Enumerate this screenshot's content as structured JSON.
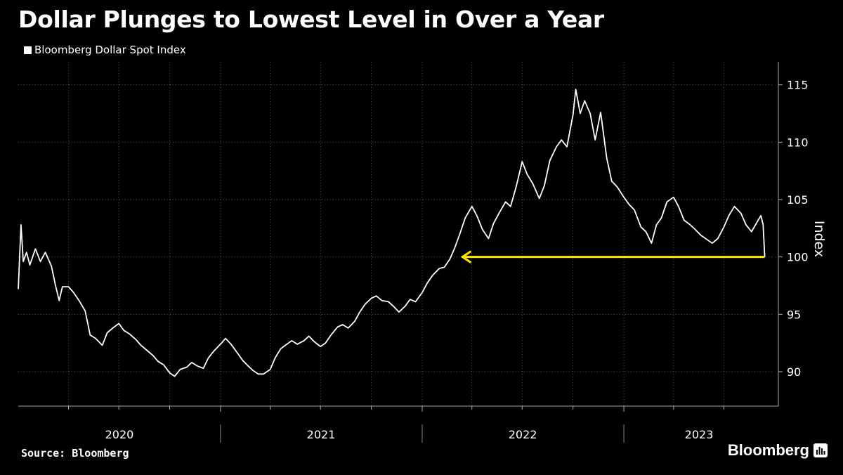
{
  "chart_data": {
    "type": "line",
    "title": "Dollar Plunges to Lowest Level in Over a Year",
    "series": [
      {
        "name": "Bloomberg Dollar Spot Index",
        "color": "#ffffff",
        "points": [
          [
            "2020-01-01",
            97.2
          ],
          [
            "2020-01-06",
            102.8
          ],
          [
            "2020-01-10",
            99.6
          ],
          [
            "2020-01-16",
            100.4
          ],
          [
            "2020-01-22",
            99.3
          ],
          [
            "2020-02-01",
            100.7
          ],
          [
            "2020-02-10",
            99.6
          ],
          [
            "2020-02-19",
            100.4
          ],
          [
            "2020-03-01",
            99.2
          ],
          [
            "2020-03-08",
            97.6
          ],
          [
            "2020-03-15",
            96.2
          ],
          [
            "2020-03-21",
            97.4
          ],
          [
            "2020-04-01",
            97.4
          ],
          [
            "2020-04-10",
            96.9
          ],
          [
            "2020-04-20",
            96.2
          ],
          [
            "2020-05-01",
            95.3
          ],
          [
            "2020-05-10",
            93.2
          ],
          [
            "2020-05-20",
            92.9
          ],
          [
            "2020-06-01",
            92.3
          ],
          [
            "2020-06-10",
            93.4
          ],
          [
            "2020-06-20",
            93.8
          ],
          [
            "2020-07-01",
            94.2
          ],
          [
            "2020-07-10",
            93.6
          ],
          [
            "2020-07-20",
            93.3
          ],
          [
            "2020-08-01",
            92.8
          ],
          [
            "2020-08-10",
            92.3
          ],
          [
            "2020-08-20",
            91.9
          ],
          [
            "2020-09-01",
            91.4
          ],
          [
            "2020-09-10",
            90.9
          ],
          [
            "2020-09-20",
            90.6
          ],
          [
            "2020-10-01",
            89.9
          ],
          [
            "2020-10-10",
            89.6
          ],
          [
            "2020-10-20",
            90.2
          ],
          [
            "2020-11-01",
            90.4
          ],
          [
            "2020-11-10",
            90.8
          ],
          [
            "2020-11-20",
            90.5
          ],
          [
            "2020-12-01",
            90.3
          ],
          [
            "2020-12-10",
            91.2
          ],
          [
            "2020-12-20",
            91.8
          ],
          [
            "2021-01-01",
            92.4
          ],
          [
            "2021-01-10",
            92.9
          ],
          [
            "2021-01-20",
            92.4
          ],
          [
            "2021-02-01",
            91.6
          ],
          [
            "2021-02-10",
            91.0
          ],
          [
            "2021-02-20",
            90.5
          ],
          [
            "2021-03-01",
            90.1
          ],
          [
            "2021-03-10",
            89.8
          ],
          [
            "2021-03-20",
            89.8
          ],
          [
            "2021-04-01",
            90.2
          ],
          [
            "2021-04-10",
            91.2
          ],
          [
            "2021-04-20",
            92.0
          ],
          [
            "2021-05-01",
            92.4
          ],
          [
            "2021-05-10",
            92.7
          ],
          [
            "2021-05-20",
            92.4
          ],
          [
            "2021-06-01",
            92.7
          ],
          [
            "2021-06-10",
            93.1
          ],
          [
            "2021-06-20",
            92.6
          ],
          [
            "2021-07-01",
            92.2
          ],
          [
            "2021-07-10",
            92.5
          ],
          [
            "2021-07-20",
            93.2
          ],
          [
            "2021-08-01",
            93.9
          ],
          [
            "2021-08-10",
            94.1
          ],
          [
            "2021-08-20",
            93.8
          ],
          [
            "2021-09-01",
            94.4
          ],
          [
            "2021-09-10",
            95.2
          ],
          [
            "2021-09-20",
            95.9
          ],
          [
            "2021-10-01",
            96.4
          ],
          [
            "2021-10-10",
            96.6
          ],
          [
            "2021-10-20",
            96.2
          ],
          [
            "2021-11-01",
            96.1
          ],
          [
            "2021-11-10",
            95.7
          ],
          [
            "2021-11-20",
            95.2
          ],
          [
            "2021-12-01",
            95.7
          ],
          [
            "2021-12-10",
            96.3
          ],
          [
            "2021-12-20",
            96.1
          ],
          [
            "2022-01-01",
            96.9
          ],
          [
            "2022-01-10",
            97.7
          ],
          [
            "2022-01-20",
            98.4
          ],
          [
            "2022-02-01",
            99.0
          ],
          [
            "2022-02-10",
            99.1
          ],
          [
            "2022-02-20",
            99.8
          ],
          [
            "2022-03-01",
            100.8
          ],
          [
            "2022-03-10",
            102.0
          ],
          [
            "2022-03-20",
            103.4
          ],
          [
            "2022-04-01",
            104.4
          ],
          [
            "2022-04-10",
            103.6
          ],
          [
            "2022-04-20",
            102.4
          ],
          [
            "2022-05-01",
            101.6
          ],
          [
            "2022-05-10",
            102.9
          ],
          [
            "2022-05-20",
            103.8
          ],
          [
            "2022-06-01",
            104.8
          ],
          [
            "2022-06-10",
            104.4
          ],
          [
            "2022-06-20",
            106.1
          ],
          [
            "2022-07-01",
            108.3
          ],
          [
            "2022-07-10",
            107.2
          ],
          [
            "2022-07-20",
            106.4
          ],
          [
            "2022-08-01",
            105.1
          ],
          [
            "2022-08-10",
            106.2
          ],
          [
            "2022-08-20",
            108.4
          ],
          [
            "2022-09-01",
            109.6
          ],
          [
            "2022-09-10",
            110.2
          ],
          [
            "2022-09-20",
            109.6
          ],
          [
            "2022-10-01",
            112.4
          ],
          [
            "2022-10-06",
            114.6
          ],
          [
            "2022-10-14",
            112.5
          ],
          [
            "2022-10-22",
            113.6
          ],
          [
            "2022-11-01",
            112.5
          ],
          [
            "2022-11-10",
            110.2
          ],
          [
            "2022-11-20",
            112.6
          ],
          [
            "2022-12-01",
            108.6
          ],
          [
            "2022-12-10",
            106.6
          ],
          [
            "2022-12-20",
            106.1
          ],
          [
            "2023-01-01",
            105.2
          ],
          [
            "2023-01-10",
            104.6
          ],
          [
            "2023-01-20",
            104.1
          ],
          [
            "2023-02-01",
            102.6
          ],
          [
            "2023-02-10",
            102.2
          ],
          [
            "2023-02-20",
            101.2
          ],
          [
            "2023-03-01",
            102.8
          ],
          [
            "2023-03-10",
            103.4
          ],
          [
            "2023-03-20",
            104.8
          ],
          [
            "2023-04-01",
            105.2
          ],
          [
            "2023-04-10",
            104.4
          ],
          [
            "2023-04-20",
            103.2
          ],
          [
            "2023-05-01",
            102.8
          ],
          [
            "2023-05-10",
            102.4
          ],
          [
            "2023-05-20",
            101.9
          ],
          [
            "2023-06-01",
            101.5
          ],
          [
            "2023-06-10",
            101.2
          ],
          [
            "2023-06-20",
            101.6
          ],
          [
            "2023-07-01",
            102.6
          ],
          [
            "2023-07-10",
            103.6
          ],
          [
            "2023-07-20",
            104.4
          ],
          [
            "2023-08-01",
            103.8
          ],
          [
            "2023-08-10",
            102.8
          ],
          [
            "2023-08-20",
            102.2
          ],
          [
            "2023-09-01",
            103.2
          ],
          [
            "2023-09-06",
            103.6
          ],
          [
            "2023-09-10",
            102.8
          ],
          [
            "2023-09-13",
            100.0
          ]
        ]
      }
    ],
    "x_axis": {
      "type": "date",
      "range": [
        "2020-01-01",
        "2023-09-30"
      ],
      "tick_labels": [
        "2020",
        "2021",
        "2022",
        "2023"
      ]
    },
    "y_axis": {
      "label": "Index",
      "side": "right",
      "range": [
        87,
        117
      ],
      "ticks": [
        90,
        95,
        100,
        105,
        110,
        115
      ]
    },
    "grid": true,
    "legend_position": "top-left",
    "annotation": {
      "type": "arrow",
      "color": "#ffe600",
      "y": 100,
      "from_date": "2023-09-13",
      "to_date": "2022-03-15"
    }
  },
  "source": "Source: Bloomberg",
  "brand": "Bloomberg",
  "brand_icon": "bar-chart-icon"
}
